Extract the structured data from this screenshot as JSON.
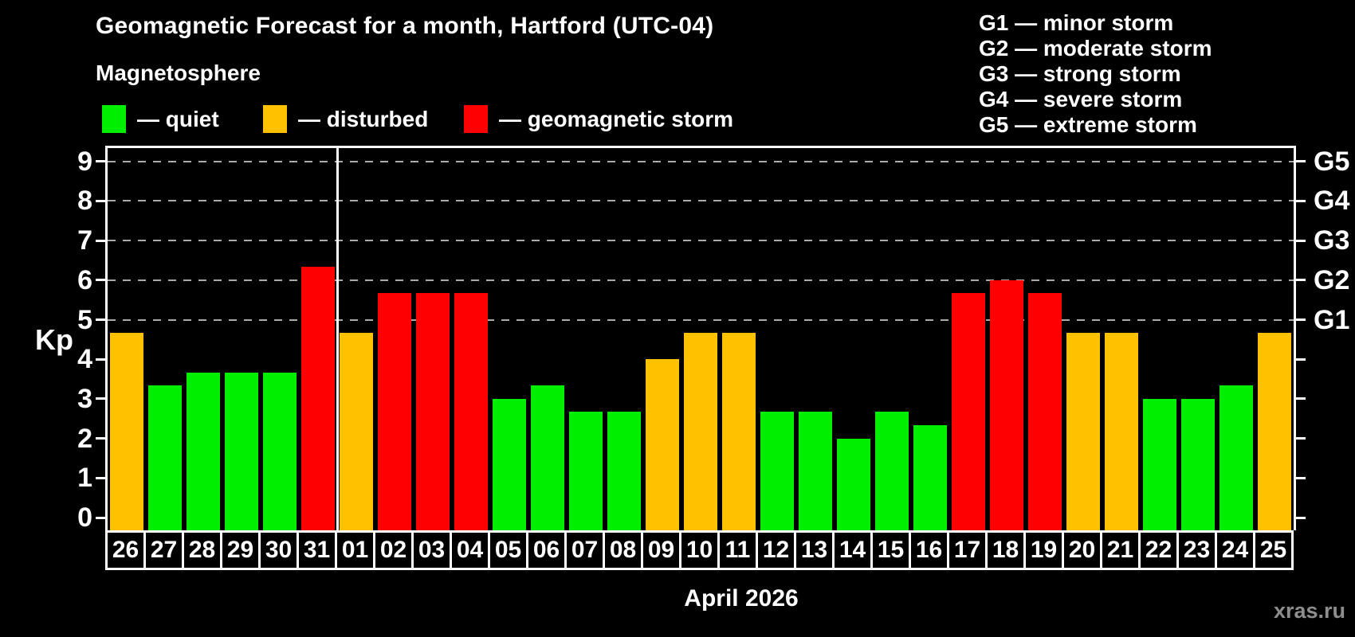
{
  "header": {
    "title": "Geomagnetic Forecast for a month, Hartford (UTC-04)",
    "subtitle": "Magnetosphere"
  },
  "legend": {
    "items": [
      {
        "label": "— quiet",
        "level": "quiet"
      },
      {
        "label": "— disturbed",
        "level": "disturbed"
      },
      {
        "label": "— geomagnetic storm",
        "level": "storm"
      }
    ]
  },
  "storm_scale": [
    "G1 — minor storm",
    "G2 — moderate storm",
    "G3 — strong storm",
    "G4 — severe storm",
    "G5 — extreme storm"
  ],
  "footer": {
    "watermark": "xras.ru"
  },
  "chart_data": {
    "type": "bar",
    "title": "Geomagnetic Forecast for a month, Hartford (UTC-04)",
    "subtitle": "Magnetosphere",
    "ylabel": "Kp",
    "xlabel": "April 2026",
    "ylim": [
      0,
      9
    ],
    "yticks": [
      0,
      1,
      2,
      3,
      4,
      5,
      6,
      7,
      8,
      9
    ],
    "grid_levels": [
      5,
      6,
      7,
      8,
      9
    ],
    "right_axis": [
      {
        "kp": 5,
        "label": "G1"
      },
      {
        "kp": 6,
        "label": "G2"
      },
      {
        "kp": 7,
        "label": "G3"
      },
      {
        "kp": 8,
        "label": "G4"
      },
      {
        "kp": 9,
        "label": "G5"
      }
    ],
    "legend_position": "top-left",
    "grid": "dashed horizontal at G levels only",
    "month_separator_after_category": "31",
    "categories": [
      "26",
      "27",
      "28",
      "29",
      "30",
      "31",
      "01",
      "02",
      "03",
      "04",
      "05",
      "06",
      "07",
      "08",
      "09",
      "10",
      "11",
      "12",
      "13",
      "14",
      "15",
      "16",
      "17",
      "18",
      "19",
      "20",
      "21",
      "22",
      "23",
      "24",
      "25"
    ],
    "values": [
      4.67,
      3.33,
      3.67,
      3.67,
      3.67,
      6.33,
      4.67,
      5.67,
      5.67,
      5.67,
      3.0,
      3.33,
      2.67,
      2.67,
      4.0,
      4.67,
      4.67,
      2.67,
      2.67,
      2.0,
      2.67,
      2.33,
      5.67,
      6.0,
      5.67,
      4.67,
      4.67,
      3.0,
      3.0,
      3.33,
      4.67
    ],
    "levels": [
      "disturbed",
      "quiet",
      "quiet",
      "quiet",
      "quiet",
      "storm",
      "disturbed",
      "storm",
      "storm",
      "storm",
      "quiet",
      "quiet",
      "quiet",
      "quiet",
      "disturbed",
      "disturbed",
      "disturbed",
      "quiet",
      "quiet",
      "quiet",
      "quiet",
      "quiet",
      "storm",
      "storm",
      "storm",
      "disturbed",
      "disturbed",
      "quiet",
      "quiet",
      "quiet",
      "disturbed"
    ],
    "colors": {
      "quiet": "#00ee00",
      "disturbed": "#ffc100",
      "storm": "#ff0000",
      "axis": "#ffffff",
      "gridline": "#ababab",
      "background": "#000000"
    }
  }
}
